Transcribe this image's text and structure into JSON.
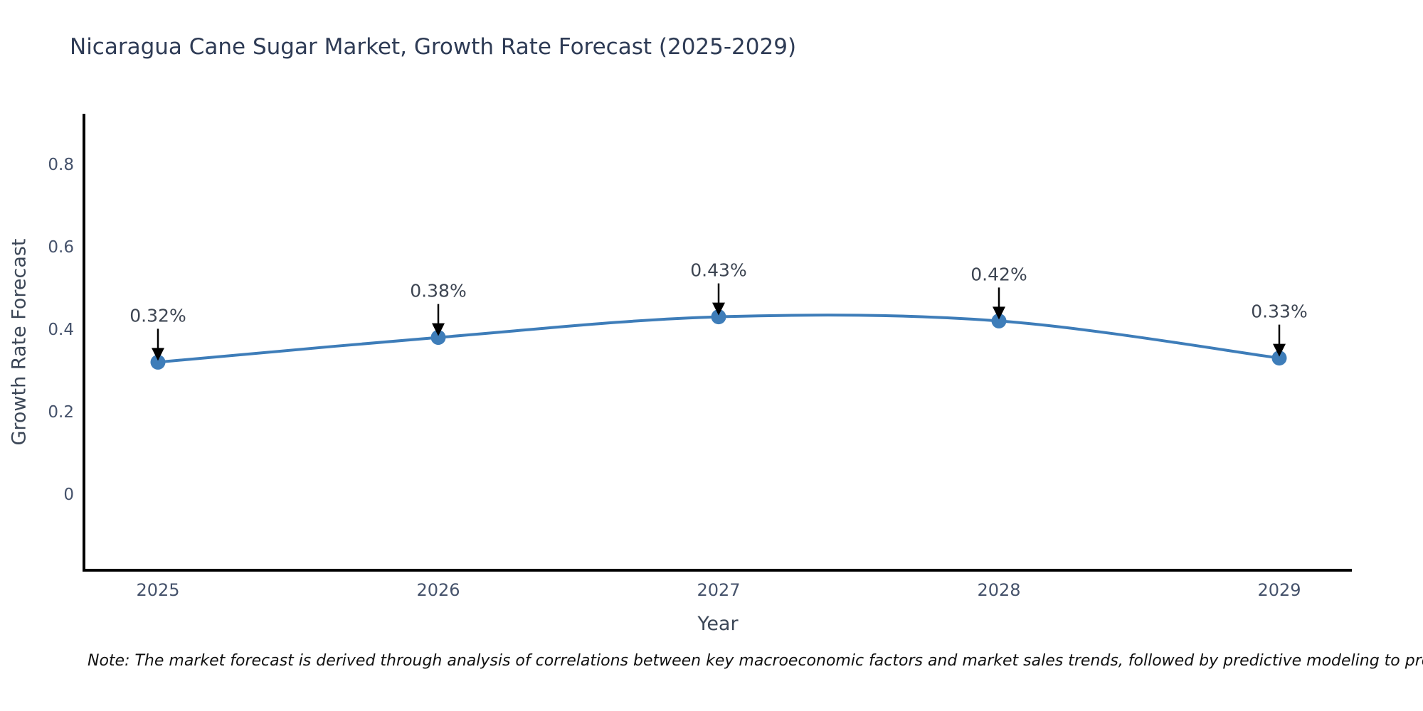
{
  "title": "Nicaragua Cane Sugar Market, Growth Rate Forecast (2025-2029)",
  "note": "Note: The market forecast is derived through analysis of correlations between key macroeconomic factors and market sales trends, followed by predictive modeling to project future sales",
  "chart_data": {
    "type": "line",
    "title": "Nicaragua Cane Sugar Market, Growth Rate Forecast (2025-2029)",
    "xlabel": "Year",
    "ylabel": "Growth Rate Forecast",
    "categories": [
      "2025",
      "2026",
      "2027",
      "2028",
      "2029"
    ],
    "x": [
      2025,
      2026,
      2027,
      2028,
      2029
    ],
    "series": [
      {
        "name": "Growth Rate Forecast",
        "values": [
          0.32,
          0.38,
          0.43,
          0.42,
          0.33
        ],
        "point_labels": [
          "0.32%",
          "0.38%",
          "0.43%",
          "0.42%",
          "0.33%"
        ]
      }
    ],
    "yticks": [
      "0",
      "0.2",
      "0.4",
      "0.6",
      "0.8"
    ],
    "ytick_values": [
      0,
      0.2,
      0.4,
      0.6,
      0.8
    ],
    "ylim": [
      -0.18,
      0.92
    ],
    "xlim": [
      2024.73,
      2029.26
    ],
    "grid": false,
    "legend_position": "none",
    "line_shape": "smooth",
    "colors": {
      "line": "#3e7db9",
      "marker": "#3e7db9",
      "annotation_arrow": "#000000",
      "annotation_text": "#3d4552",
      "axis_spine": "#000000",
      "tick_text": "#45526b",
      "title_text": "#2e3b55",
      "axis_title_text": "#3c4757",
      "note_text": "#111111",
      "background": "#ffffff"
    }
  }
}
